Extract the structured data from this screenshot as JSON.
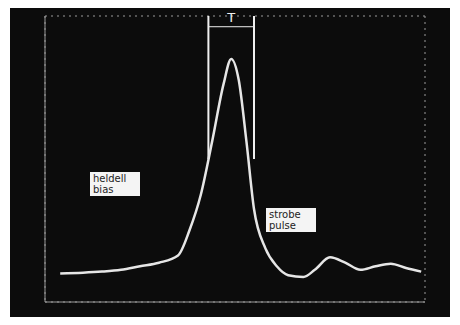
{
  "chart_data": {
    "type": "line",
    "x": [
      0.4,
      1.0,
      1.5,
      2.0,
      2.5,
      3.0,
      3.5,
      3.8,
      4.1,
      4.4,
      4.7,
      4.9,
      5.1,
      5.3,
      5.5,
      5.8,
      6.1,
      6.4,
      6.8,
      7.1,
      7.5,
      7.9,
      8.3,
      8.7,
      9.1,
      9.5,
      9.9
    ],
    "values": [
      0.8,
      0.82,
      0.85,
      0.9,
      1.0,
      1.1,
      1.3,
      2.0,
      3.0,
      4.5,
      6.1,
      6.8,
      6.2,
      4.5,
      2.6,
      1.5,
      1.0,
      0.75,
      0.7,
      0.9,
      1.25,
      1.1,
      0.9,
      1.0,
      1.07,
      0.95,
      0.85
    ],
    "color": "#e6e6e6",
    "xlim": [
      0,
      10
    ],
    "ylim": [
      0,
      8
    ],
    "xticks": [
      0,
      1,
      2,
      3,
      4,
      5,
      6,
      7,
      8,
      9,
      10
    ],
    "yticks": [
      0,
      1,
      2,
      3,
      4,
      5,
      6,
      7,
      8
    ],
    "grid": true,
    "tick_labels": false,
    "annotations": [
      {
        "text": "T",
        "x": [
          4.3,
          5.5
        ]
      },
      {
        "text": "heldell bias"
      },
      {
        "text": "strobe pulse"
      }
    ]
  }
}
